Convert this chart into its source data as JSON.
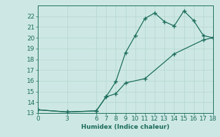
{
  "xlabel": "Humidex (Indice chaleur)",
  "line1_x": [
    0,
    3,
    6,
    7,
    8,
    9,
    10,
    11,
    12,
    13,
    14,
    15,
    16,
    17,
    18
  ],
  "line1_y": [
    13.3,
    13.1,
    13.2,
    14.5,
    15.9,
    18.6,
    20.2,
    21.8,
    22.3,
    21.5,
    21.1,
    22.5,
    21.6,
    20.2,
    20.0
  ],
  "line2_x": [
    0,
    3,
    6,
    7,
    8,
    9,
    11,
    14,
    17,
    18
  ],
  "line2_y": [
    13.3,
    13.1,
    13.2,
    14.5,
    14.8,
    15.8,
    16.2,
    18.5,
    19.8,
    20.0
  ],
  "line_color": "#1a6b5a",
  "bg_color": "#cde8e4",
  "grid_color": "#b8d8d2",
  "xlim": [
    0,
    18
  ],
  "ylim": [
    13,
    23
  ],
  "xticks": [
    0,
    3,
    6,
    7,
    8,
    9,
    10,
    11,
    12,
    13,
    14,
    15,
    16,
    17,
    18
  ],
  "yticks": [
    13,
    14,
    15,
    16,
    17,
    18,
    19,
    20,
    21,
    22
  ],
  "fontsize": 6.5,
  "marker": "+",
  "markersize": 4,
  "linewidth": 0.9
}
